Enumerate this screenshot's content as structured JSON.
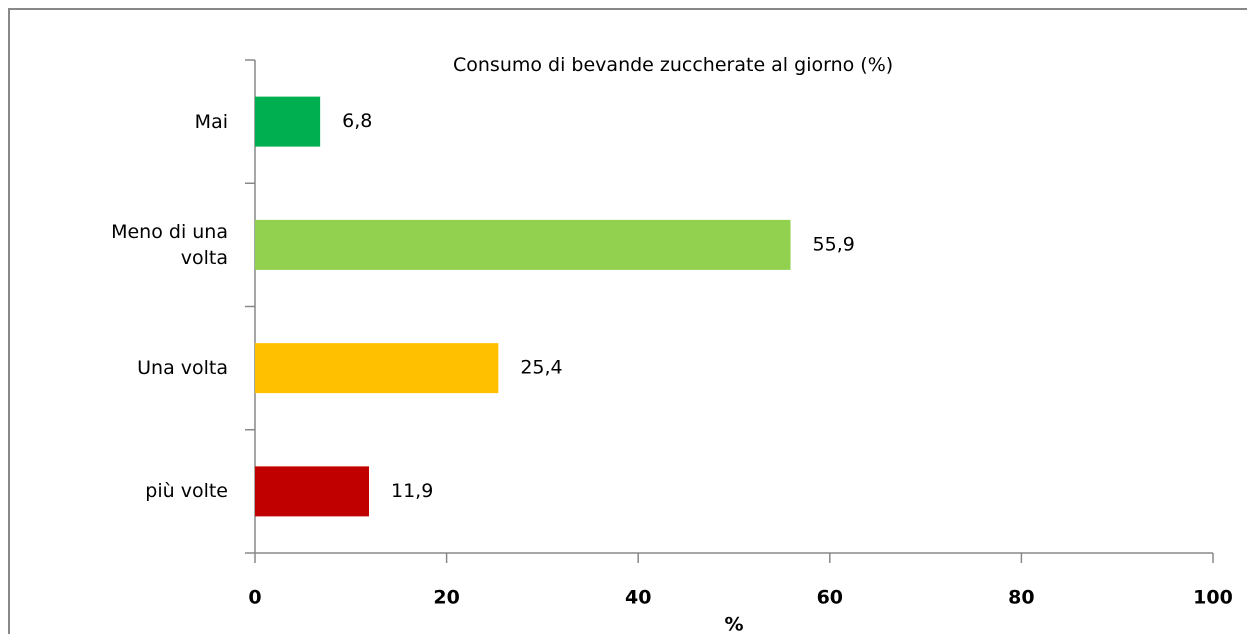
{
  "chart_data": {
    "type": "hbar",
    "title": "Consumo di bevande zuccherate al giorno (%)",
    "categories": [
      "Mai",
      "Meno di una volta",
      "Una volta",
      "più volte"
    ],
    "values": [
      6.8,
      55.9,
      25.4,
      11.9
    ],
    "value_labels": [
      "6,8",
      "55,9",
      "25,4",
      "11,9"
    ],
    "colors": [
      "#00b050",
      "#92d050",
      "#ffc000",
      "#c00000"
    ],
    "xlabel": "%",
    "xlim": [
      0,
      100
    ],
    "xticks": [
      0,
      20,
      40,
      60,
      80,
      100
    ],
    "grid": false
  }
}
